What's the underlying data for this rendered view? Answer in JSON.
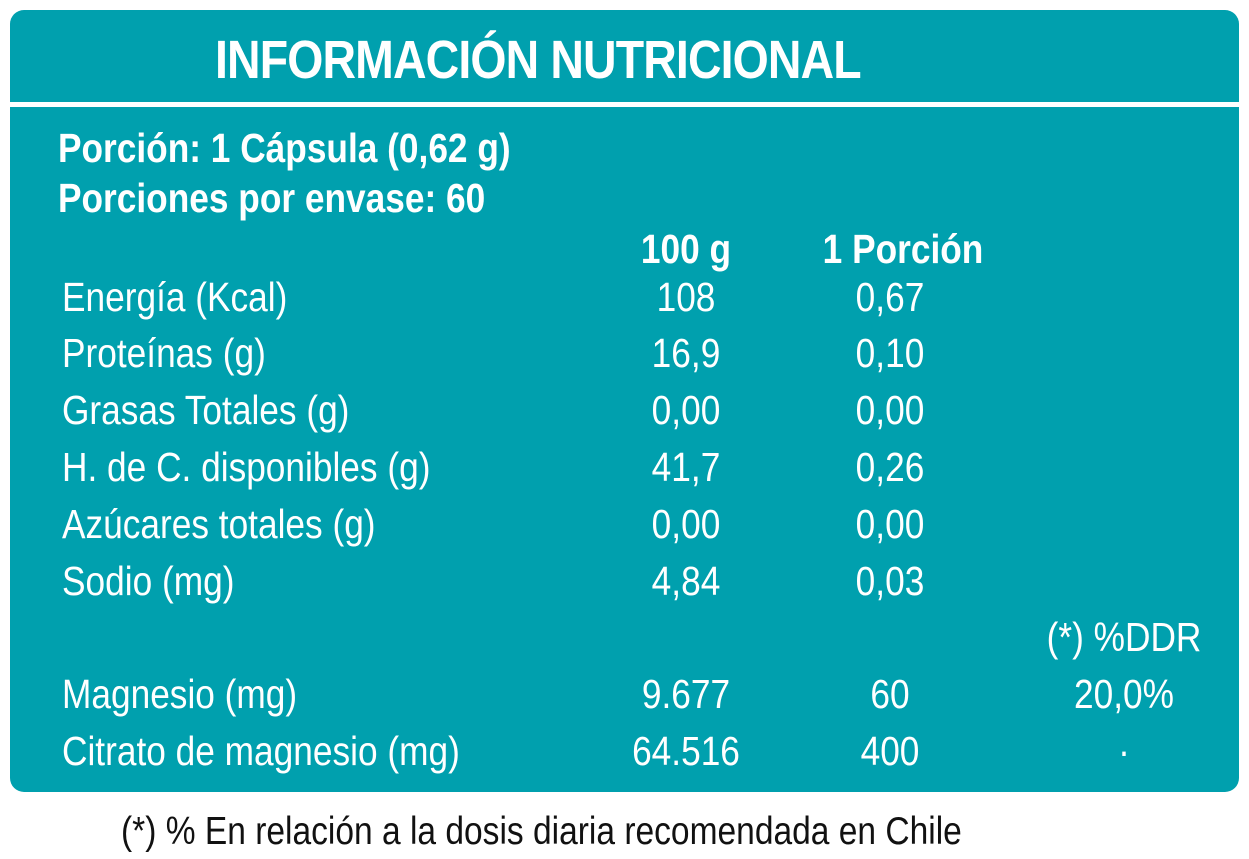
{
  "title": "INFORMACIÓN NUTRICIONAL",
  "portion": "Porción: 1 Cápsula (0,62 g)",
  "servings": "Porciones por envase: 60",
  "columns": {
    "per100": "100 g",
    "perPortion": "1 Porción",
    "ddr": "(*) %DDR"
  },
  "rows": [
    {
      "label": "Energía (Kcal)",
      "per100": "108",
      "perPortion": "0,67",
      "ddr": ""
    },
    {
      "label": "Proteínas (g)",
      "per100": "16,9",
      "perPortion": "0,10",
      "ddr": ""
    },
    {
      "label": "Grasas Totales (g)",
      "per100": "0,00",
      "perPortion": "0,00",
      "ddr": ""
    },
    {
      "label": "H. de C. disponibles (g)",
      "per100": "41,7",
      "perPortion": "0,26",
      "ddr": ""
    },
    {
      "label": "Azúcares totales (g)",
      "per100": "0,00",
      "perPortion": "0,00",
      "ddr": ""
    },
    {
      "label": "Sodio (mg)",
      "per100": "4,84",
      "perPortion": "0,03",
      "ddr": ""
    },
    {
      "label": "Magnesio (mg)",
      "per100": "9.677",
      "perPortion": "60",
      "ddr": "20,0%"
    },
    {
      "label": "Citrato de magnesio (mg)",
      "per100": "64.516",
      "perPortion": "400",
      "ddr": "·"
    }
  ],
  "footnote": "(*) % En relación a la dosis diaria recomendada en Chile",
  "colors": {
    "panel": "#00a0ae",
    "text": "#ffffff",
    "footnote": "#111111"
  }
}
